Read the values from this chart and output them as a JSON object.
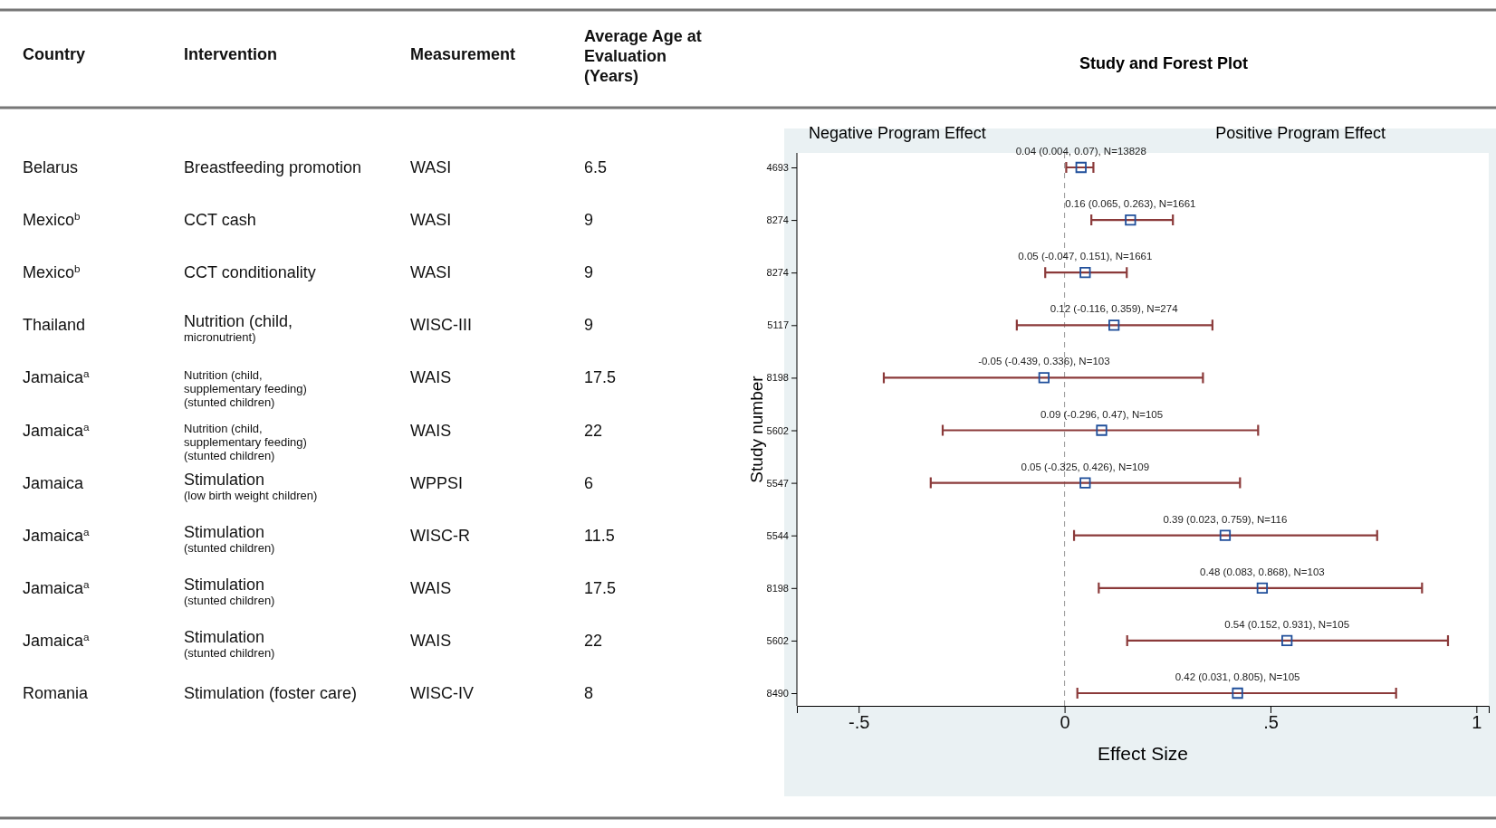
{
  "chart_data": [
    {
      "type": "other",
      "annotations": [
        "Country",
        "Intervention",
        "Measurement",
        "Average Age at\nEvaluation\n(Years)",
        "Belarus",
        "Breastfeeding promotion",
        "WASI",
        "6.5",
        "Mexico$^{b}$",
        "CCT cash",
        "WASI",
        "9",
        "Mexico$^{b}$",
        "CCT conditionality",
        "WASI",
        "9",
        "Thailand",
        "Nutrition (child,\nmicronutrient)",
        "WISC-III",
        "9",
        "Jamaica$^{a}$",
        "Nutrition (child,\nsupplementary feeding)\n(stunted children)",
        "WAIS",
        "17.5",
        "Jamaica$^{a}$",
        "Nutrition (child,\nsupplementary feeding)\n(stunted children)",
        "WAIS",
        "22",
        "Jamaica",
        "Stimulation\n(low birth weight children)",
        "WPPSI",
        "6",
        "Jamaica$^{a}$",
        "Stimulation\n(stunted children)",
        "WISC-R",
        "11.5",
        "Jamaica$^{a}$",
        "Stimulation\n(stunted children)",
        "WAIS",
        "17.5",
        "Jamaica$^{a}$",
        "Stimulation\n(stunted children)",
        "WAIS",
        "22",
        "Romania",
        "Stimulation (foster care)",
        "WISC-IV",
        "8"
      ]
    },
    {
      "type": "scatter",
      "orientation": "horizontal",
      "title": "Study and Forest Plot",
      "xlabel": "Effect Size",
      "ylabel": "Study number",
      "categories": [
        "4693",
        "8274",
        "8274",
        "5117",
        "8198",
        "5602",
        "5547",
        "5544",
        "8198",
        "5602",
        "8490"
      ],
      "series": [
        {
          "color": "#1f4e9a",
          "marker": "square",
          "values": [
            0.04,
            0.16,
            0.05,
            0.12,
            -0.05,
            0.09,
            0.05,
            0.39,
            0.48,
            0.54,
            0.42
          ],
          "errors": [
            [
              0.004,
              0.07
            ],
            [
              0.065,
              0.263
            ],
            [
              -0.047,
              0.151
            ],
            [
              -0.116,
              0.359
            ],
            [
              -0.439,
              0.336
            ],
            [
              -0.296,
              0.47
            ],
            [
              -0.325,
              0.426
            ],
            [
              0.023,
              0.759
            ],
            [
              0.083,
              0.868
            ],
            [
              0.152,
              0.931
            ],
            [
              0.031,
              0.805
            ]
          ],
          "value_labels": [
            "0.04 (0.004, 0.07), N=13828",
            "0.16 (0.065, 0.263), N=1661",
            "0.05 (-0.047, 0.151), N=1661",
            "0.12 (-0.116, 0.359), N=274",
            "-0.05 (-0.439, 0.336), N=103",
            "0.09 (-0.296, 0.47), N=105",
            "0.05 (-0.325, 0.426), N=109",
            "0.39 (0.023, 0.759), N=116",
            "0.48 (0.083, 0.868), N=103",
            "0.54 (0.152, 0.931), N=105",
            "0.42 (0.031, 0.805), N=105"
          ]
        }
      ],
      "xlim": [
        -0.65,
        1.03
      ],
      "xticks": [
        {
          "value": -0.5,
          "label": "-.5"
        },
        0,
        {
          "value": 0.5,
          "label": ".5"
        },
        1
      ],
      "ref_lines": [
        {
          "axis": "x",
          "value": 0,
          "line_style": "dashed",
          "color": "#999999"
        }
      ],
      "annotations": [
        "Negative Program Effect",
        "Positive Program Effect"
      ]
    }
  ]
}
